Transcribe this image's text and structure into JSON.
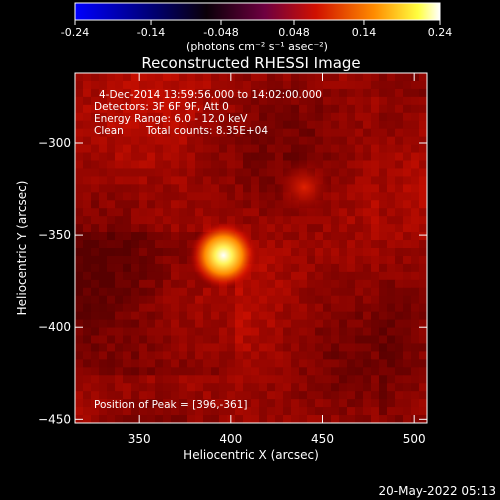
{
  "colorbar": {
    "ticks": [
      "-0.24",
      "-0.14",
      "-0.048",
      "0.048",
      "0.14",
      "0.24"
    ],
    "tick_values": [
      -0.24,
      -0.14,
      -0.048,
      0.048,
      0.14,
      0.24
    ],
    "range": [
      -0.24,
      0.24
    ],
    "units": "(photons cm⁻² s⁻¹ asec⁻²)"
  },
  "chart_data": {
    "type": "heatmap",
    "title": "Reconstructed RHESSI Image",
    "xlabel": "Heliocentric X (arcsec)",
    "ylabel": "Heliocentric Y (arcsec)",
    "xlim": [
      315,
      507
    ],
    "ylim": [
      -452,
      -262
    ],
    "xticks": [
      350,
      400,
      450,
      500
    ],
    "yticks": [
      -300,
      -350,
      -400,
      -450
    ],
    "xtick_labels": [
      "350",
      "400",
      "450",
      "500"
    ],
    "ytick_labels": [
      "−300",
      "−350",
      "−400",
      "−450"
    ],
    "sources": [
      {
        "x": 396,
        "y": -361,
        "peak": 0.24
      },
      {
        "x": 440,
        "y": -324,
        "peak": 0.1
      }
    ],
    "annotations": {
      "time": "4-Dec-2014 13:59:56.000 to 14:02:00.000",
      "detectors": "Detectors: 3F 6F 9F, Att 0",
      "energy": "Energy Range: 6.0 - 12.0 keV",
      "clean": "Clean",
      "counts": "Total counts: 8.35E+04",
      "peak": "Position of Peak = [396,-361]"
    },
    "colormap": [
      "#0000ff",
      "#00008a",
      "#000000",
      "#5a0018",
      "#c00000",
      "#ff8800",
      "#ffff00",
      "#ffffff"
    ]
  },
  "footer": {
    "date": "20-May-2022 05:13"
  }
}
